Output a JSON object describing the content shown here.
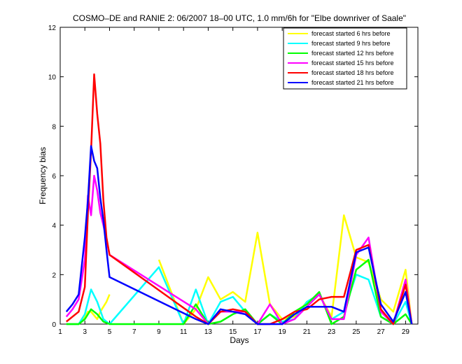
{
  "chart_data": {
    "type": "line",
    "title": "COSMO–DE and RANIE 2: 06/2007 18–00 UTC, 1.0 mm/6h for \"Elbe downriver of Saale\"",
    "xlabel": "Days",
    "ylabel": "Frequency bias",
    "xlim": [
      1,
      30
    ],
    "ylim": [
      0,
      12
    ],
    "xticks": [
      1,
      3,
      5,
      7,
      9,
      11,
      13,
      15,
      17,
      19,
      21,
      23,
      25,
      27,
      29
    ],
    "yticks": [
      0,
      2,
      4,
      6,
      8,
      10,
      12
    ],
    "grid": false,
    "legend_position": "top-right",
    "series": [
      {
        "name": "forecast started 6 hrs before",
        "color": "#ffff00",
        "x": [
          1.5,
          2.5,
          3,
          3.25,
          3.5,
          4,
          4.25,
          4.75,
          5,
          7,
          9,
          11,
          12,
          13,
          14,
          15,
          16,
          17,
          18,
          19,
          20,
          21,
          22,
          23,
          24,
          25,
          26,
          27,
          28,
          29,
          29.5
        ],
        "y": [
          0,
          0,
          0.3,
          0.5,
          0.5,
          0.2,
          0.5,
          0.9,
          1.2,
          null,
          2.6,
          0,
          0.6,
          1.9,
          1.0,
          1.3,
          0.9,
          3.7,
          0.8,
          0.2,
          0.3,
          0.9,
          1.2,
          0.3,
          4.4,
          2.7,
          2.5,
          1.0,
          0.5,
          2.2,
          0
        ]
      },
      {
        "name": "forecast started 9 hrs before",
        "color": "#00ffff",
        "x": [
          1.5,
          2.5,
          3,
          3.5,
          4,
          4.5,
          5,
          9,
          11,
          12,
          13,
          14,
          15,
          16,
          17,
          18,
          19,
          20,
          21,
          22,
          23,
          24,
          25,
          26,
          27,
          28,
          29,
          29.5
        ],
        "y": [
          0,
          0,
          0.4,
          1.4,
          0.9,
          0.2,
          0,
          2.3,
          0,
          1.4,
          0,
          0.9,
          1.1,
          0.5,
          0,
          0.4,
          0.1,
          0.2,
          0.9,
          1.2,
          0.2,
          0.5,
          2.0,
          1.8,
          0.3,
          0,
          0.9,
          0
        ]
      },
      {
        "name": "forecast started 12 hrs before",
        "color": "#00ff00",
        "x": [
          1.5,
          2.5,
          3,
          3.5,
          4,
          4.5,
          5,
          11,
          12,
          13,
          14,
          15,
          16,
          17,
          18,
          19,
          20,
          21,
          22,
          23,
          24,
          25,
          26,
          27,
          28,
          29,
          29.5
        ],
        "y": [
          0,
          0,
          0.2,
          0.6,
          0.4,
          0.1,
          0,
          0,
          0.8,
          0,
          0.1,
          0.4,
          0.6,
          0,
          0.4,
          0,
          0.5,
          0.8,
          1.3,
          0,
          0.3,
          2.2,
          2.6,
          0.3,
          0,
          0.4,
          0
        ]
      },
      {
        "name": "forecast started 15 hrs before",
        "color": "#ff00ff",
        "x": [
          1.5,
          2,
          2.5,
          3,
          3.25,
          3.5,
          3.75,
          4,
          4.25,
          4.5,
          4.75,
          5,
          12,
          13,
          14,
          15,
          16,
          17,
          18,
          19,
          20,
          21,
          22,
          23,
          24,
          25,
          26,
          27,
          28,
          29,
          29.5
        ],
        "y": [
          0.3,
          0.6,
          1.0,
          2.6,
          5.2,
          4.4,
          6.0,
          5.4,
          4.5,
          4.0,
          3.4,
          2.8,
          0.6,
          0,
          0.5,
          0.5,
          0.5,
          0,
          0.8,
          0,
          0.2,
          0.7,
          1.2,
          0.2,
          0.2,
          2.8,
          3.5,
          0.5,
          0,
          1.8,
          0
        ]
      },
      {
        "name": "forecast started 18 hrs before",
        "color": "#ff0000",
        "x": [
          1.5,
          2.5,
          3,
          3.25,
          3.5,
          3.75,
          4,
          4.25,
          4.5,
          4.75,
          5,
          12,
          13,
          14,
          15,
          16,
          17,
          18,
          19,
          20,
          21,
          22,
          23,
          24,
          25,
          26,
          27,
          28,
          29,
          29.5
        ],
        "y": [
          0.1,
          0.5,
          1.5,
          4.5,
          7.0,
          10.1,
          8.5,
          7.3,
          5.0,
          3.5,
          2.8,
          0.3,
          0,
          0.5,
          0.6,
          0.5,
          0,
          0,
          0.2,
          0.5,
          0.6,
          1.0,
          1.1,
          1.1,
          3.0,
          3.2,
          0.6,
          0,
          1.6,
          0
        ]
      },
      {
        "name": "forecast started 21 hrs before",
        "color": "#0000ff",
        "x": [
          1.5,
          2,
          2.5,
          3,
          3.25,
          3.5,
          3.75,
          4,
          4.25,
          4.5,
          4.75,
          5,
          12,
          13,
          14,
          15,
          16,
          17,
          18,
          19,
          20,
          21,
          22,
          23,
          24,
          25,
          26,
          27,
          28,
          29,
          29.5
        ],
        "y": [
          0.5,
          0.8,
          1.2,
          3.5,
          5.0,
          7.2,
          6.6,
          6.3,
          5.1,
          4.2,
          3.0,
          1.9,
          0.2,
          0,
          0.6,
          0.5,
          0.4,
          0,
          0,
          0,
          0.4,
          0.7,
          0.7,
          0.7,
          0.5,
          2.9,
          3.1,
          0.8,
          0.1,
          1.3,
          0
        ]
      }
    ]
  }
}
